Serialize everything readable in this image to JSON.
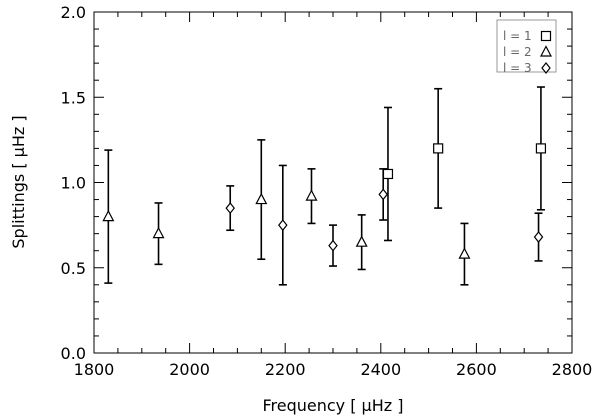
{
  "chart_data": {
    "type": "scatter",
    "xlabel": "Frequency [ μHz ]",
    "ylabel": "Splittings [ μHz ]",
    "xlim": [
      1800,
      2800
    ],
    "ylim": [
      0.0,
      2.0
    ],
    "x_ticks": [
      "1800",
      "2000",
      "2200",
      "2400",
      "2600",
      "2800"
    ],
    "y_ticks": [
      "0.0",
      "0.5",
      "1.0",
      "1.5",
      "2.0"
    ],
    "x_tick_values": [
      1800,
      2000,
      2200,
      2400,
      2600,
      2800
    ],
    "y_tick_values": [
      0.0,
      0.5,
      1.0,
      1.5,
      2.0
    ],
    "legend_position": "top-right",
    "series": [
      {
        "name": "l = 1",
        "marker": "square",
        "points": [
          {
            "x": 2415,
            "y": 1.05,
            "lo": 0.66,
            "hi": 1.44
          },
          {
            "x": 2520,
            "y": 1.2,
            "lo": 0.85,
            "hi": 1.55
          },
          {
            "x": 2735,
            "y": 1.2,
            "lo": 0.84,
            "hi": 1.56
          }
        ]
      },
      {
        "name": "l = 2",
        "marker": "triangle",
        "points": [
          {
            "x": 1830,
            "y": 0.8,
            "lo": 0.41,
            "hi": 1.19
          },
          {
            "x": 1935,
            "y": 0.7,
            "lo": 0.52,
            "hi": 0.88
          },
          {
            "x": 2150,
            "y": 0.9,
            "lo": 0.55,
            "hi": 1.25
          },
          {
            "x": 2255,
            "y": 0.92,
            "lo": 0.76,
            "hi": 1.08
          },
          {
            "x": 2360,
            "y": 0.65,
            "lo": 0.49,
            "hi": 0.81
          },
          {
            "x": 2575,
            "y": 0.58,
            "lo": 0.4,
            "hi": 0.76
          }
        ]
      },
      {
        "name": "l = 3",
        "marker": "diamond",
        "points": [
          {
            "x": 2085,
            "y": 0.85,
            "lo": 0.72,
            "hi": 0.98
          },
          {
            "x": 2195,
            "y": 0.75,
            "lo": 0.4,
            "hi": 1.1
          },
          {
            "x": 2300,
            "y": 0.63,
            "lo": 0.51,
            "hi": 0.75
          },
          {
            "x": 2405,
            "y": 0.93,
            "lo": 0.78,
            "hi": 1.08
          },
          {
            "x": 2730,
            "y": 0.68,
            "lo": 0.54,
            "hi": 0.82
          }
        ]
      }
    ]
  }
}
